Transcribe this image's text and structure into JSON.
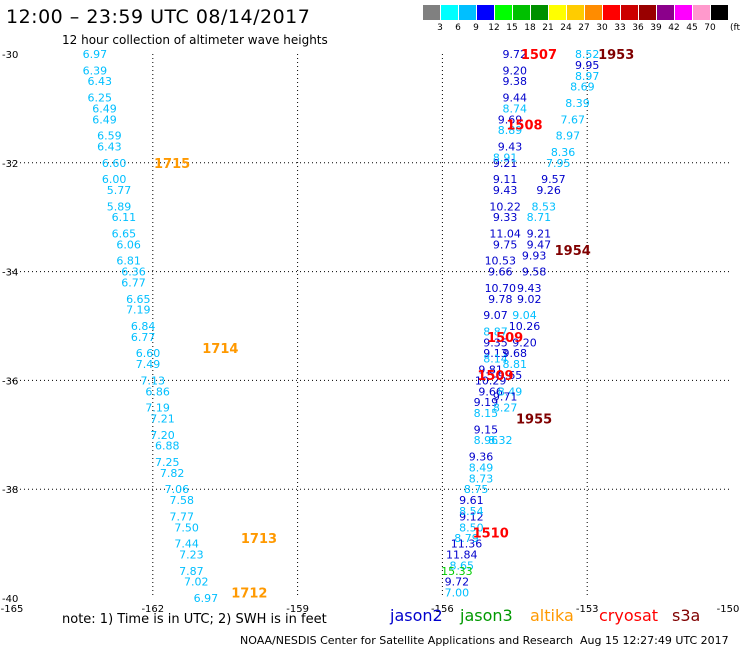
{
  "header": {
    "title": "12:00 – 23:59 UTC 08/14/2017",
    "subtitle": "12 hour collection of altimeter wave heights"
  },
  "color_scale": {
    "labels": [
      "3",
      "6",
      "9",
      "12",
      "15",
      "18",
      "21",
      "24",
      "27",
      "30",
      "33",
      "36",
      "39",
      "42",
      "45",
      "70"
    ],
    "unit": "(ft)",
    "colors": [
      "#808080",
      "#00ffff",
      "#00bfff",
      "#0000ff",
      "#00ff00",
      "#00c000",
      "#009000",
      "#ffff00",
      "#ffcc00",
      "#ff8c00",
      "#ff0000",
      "#cc0000",
      "#990000",
      "#8b008b",
      "#ff00ff",
      "#ff99cc",
      "#000000"
    ]
  },
  "footer": {
    "note": "note: 1) Time is in UTC; 2) SWH is in feet",
    "legend": [
      {
        "name": "jason2",
        "color": "#0000cc"
      },
      {
        "name": "jason3",
        "color": "#009900"
      },
      {
        "name": "altika",
        "color": "#ff9900"
      },
      {
        "name": "cryosat",
        "color": "#ff0000"
      },
      {
        "name": "s3a",
        "color": "#800000"
      }
    ],
    "credit": "NOAA/NESDIS Center for Satellite Applications and Research",
    "timestamp": "Aug 15 12:27:49 UTC 2017"
  },
  "chart_data": {
    "type": "scatter",
    "xlim": [
      -165,
      -150
    ],
    "ylim": [
      -40,
      -30
    ],
    "x_ticks": [
      "-165",
      "-162",
      "-159",
      "-156",
      "-153",
      "-150"
    ],
    "y_ticks": [
      "-30",
      "-32",
      "-34",
      "-36",
      "-38",
      "-40"
    ],
    "grid": true,
    "tracks": [
      {
        "satellite": "altika",
        "color": "#00bfff",
        "points": [
          {
            "x": -163.2,
            "y": -30.0,
            "v": "6.97"
          },
          {
            "x": -163.2,
            "y": -30.3,
            "v": "6.39"
          },
          {
            "x": -163.1,
            "y": -30.5,
            "v": "6.43"
          },
          {
            "x": -163.1,
            "y": -30.8,
            "v": "6.25"
          },
          {
            "x": -163.0,
            "y": -31.0,
            "v": "6.49"
          },
          {
            "x": -163.0,
            "y": -31.2,
            "v": "6.49"
          },
          {
            "x": -162.9,
            "y": -31.5,
            "v": "6.59"
          },
          {
            "x": -162.9,
            "y": -31.7,
            "v": "6.43"
          },
          {
            "x": -162.8,
            "y": -32.0,
            "v": "6.60"
          },
          {
            "x": -162.8,
            "y": -32.3,
            "v": "6.00"
          },
          {
            "x": -162.7,
            "y": -32.5,
            "v": "5.77"
          },
          {
            "x": -162.7,
            "y": -32.8,
            "v": "5.89"
          },
          {
            "x": -162.6,
            "y": -33.0,
            "v": "6.11"
          },
          {
            "x": -162.6,
            "y": -33.3,
            "v": "6.65"
          },
          {
            "x": -162.5,
            "y": -33.5,
            "v": "6.06"
          },
          {
            "x": -162.5,
            "y": -33.8,
            "v": "6.81"
          },
          {
            "x": -162.4,
            "y": -34.0,
            "v": "6.36"
          },
          {
            "x": -162.4,
            "y": -34.2,
            "v": "6.77"
          },
          {
            "x": -162.3,
            "y": -34.5,
            "v": "6.65"
          },
          {
            "x": -162.3,
            "y": -34.7,
            "v": "7.19"
          },
          {
            "x": -162.2,
            "y": -35.0,
            "v": "6.84"
          },
          {
            "x": -162.2,
            "y": -35.2,
            "v": "6.77"
          },
          {
            "x": -162.1,
            "y": -35.5,
            "v": "6.60"
          },
          {
            "x": -162.1,
            "y": -35.7,
            "v": "7.49"
          },
          {
            "x": -162.0,
            "y": -36.0,
            "v": "7.13"
          },
          {
            "x": -161.9,
            "y": -36.2,
            "v": "6.86"
          },
          {
            "x": -161.9,
            "y": -36.5,
            "v": "7.19"
          },
          {
            "x": -161.8,
            "y": -36.7,
            "v": "7.21"
          },
          {
            "x": -161.8,
            "y": -37.0,
            "v": "7.20"
          },
          {
            "x": -161.7,
            "y": -37.2,
            "v": "6.88"
          },
          {
            "x": -161.7,
            "y": -37.5,
            "v": "7.25"
          },
          {
            "x": -161.6,
            "y": -37.7,
            "v": "7.82"
          },
          {
            "x": -161.5,
            "y": -38.0,
            "v": "7.06"
          },
          {
            "x": -161.4,
            "y": -38.2,
            "v": "7.58"
          },
          {
            "x": -161.4,
            "y": -38.5,
            "v": "7.77"
          },
          {
            "x": -161.3,
            "y": -38.7,
            "v": "7.50"
          },
          {
            "x": -161.3,
            "y": -39.0,
            "v": "7.44"
          },
          {
            "x": -161.2,
            "y": -39.2,
            "v": "7.23"
          },
          {
            "x": -161.2,
            "y": -39.5,
            "v": "7.87"
          },
          {
            "x": -161.1,
            "y": -39.7,
            "v": "7.02"
          },
          {
            "x": -160.9,
            "y": -40.0,
            "v": "6.97"
          }
        ]
      },
      {
        "satellite": "jason2",
        "color": "#0000cc",
        "points": [
          {
            "x": -154.5,
            "y": -30.0,
            "v": "9.72"
          },
          {
            "x": -154.5,
            "y": -30.3,
            "v": "9.20"
          },
          {
            "x": -154.5,
            "y": -30.5,
            "v": "9.38"
          },
          {
            "x": -154.5,
            "y": -30.8,
            "v": "9.44"
          },
          {
            "x": -154.6,
            "y": -31.2,
            "v": "9.69"
          },
          {
            "x": -154.6,
            "y": -31.7,
            "v": "9.43"
          },
          {
            "x": -154.7,
            "y": -32.0,
            "v": "9.21"
          },
          {
            "x": -154.7,
            "y": -32.3,
            "v": "9.11"
          },
          {
            "x": -154.7,
            "y": -32.5,
            "v": "9.43"
          },
          {
            "x": -154.7,
            "y": -32.8,
            "v": "10.22"
          },
          {
            "x": -154.7,
            "y": -33.0,
            "v": "9.33"
          },
          {
            "x": -154.7,
            "y": -33.3,
            "v": "11.04"
          },
          {
            "x": -154.7,
            "y": -33.5,
            "v": "9.75"
          },
          {
            "x": -154.8,
            "y": -33.8,
            "v": "10.53"
          },
          {
            "x": -154.8,
            "y": -34.0,
            "v": "9.66"
          },
          {
            "x": -154.8,
            "y": -34.3,
            "v": "10.70"
          },
          {
            "x": -154.8,
            "y": -34.5,
            "v": "9.78"
          },
          {
            "x": -154.9,
            "y": -34.8,
            "v": "9.07"
          },
          {
            "x": -154.9,
            "y": -35.3,
            "v": "9.35"
          },
          {
            "x": -154.9,
            "y": -35.5,
            "v": "9.13"
          },
          {
            "x": -155.0,
            "y": -35.8,
            "v": "9.81"
          },
          {
            "x": -155.0,
            "y": -36.0,
            "v": "10.29"
          },
          {
            "x": -155.0,
            "y": -36.2,
            "v": "9.66"
          },
          {
            "x": -155.1,
            "y": -36.4,
            "v": "9.19"
          },
          {
            "x": -155.1,
            "y": -36.9,
            "v": "9.15"
          },
          {
            "x": -155.2,
            "y": -37.4,
            "v": "9.36"
          },
          {
            "x": -155.4,
            "y": -38.2,
            "v": "9.61"
          },
          {
            "x": -155.4,
            "y": -38.5,
            "v": "9.12"
          },
          {
            "x": -155.5,
            "y": -39.0,
            "v": "11.36"
          },
          {
            "x": -155.6,
            "y": -39.2,
            "v": "11.84"
          },
          {
            "x": -155.7,
            "y": -39.7,
            "v": "9.72"
          }
        ]
      },
      {
        "satellite": "jason3",
        "color": "#00bfff",
        "points": [
          {
            "x": -154.5,
            "y": -31.0,
            "v": "8.74"
          },
          {
            "x": -154.6,
            "y": -31.4,
            "v": "8.89"
          },
          {
            "x": -154.7,
            "y": -31.9,
            "v": "8.91"
          },
          {
            "x": -154.9,
            "y": -35.1,
            "v": "8.87"
          },
          {
            "x": -154.9,
            "y": -35.6,
            "v": "8.14"
          },
          {
            "x": -155.1,
            "y": -36.6,
            "v": "8.15"
          },
          {
            "x": -155.1,
            "y": -37.1,
            "v": "8.96"
          },
          {
            "x": -155.2,
            "y": -37.6,
            "v": "8.49"
          },
          {
            "x": -155.2,
            "y": -37.8,
            "v": "8.73"
          },
          {
            "x": -155.3,
            "y": -38.0,
            "v": "8.75"
          },
          {
            "x": -155.4,
            "y": -38.4,
            "v": "8.54"
          },
          {
            "x": -155.4,
            "y": -38.7,
            "v": "8.50"
          },
          {
            "x": -155.5,
            "y": -38.9,
            "v": "8.79"
          },
          {
            "x": -155.6,
            "y": -39.4,
            "v": "8.65"
          },
          {
            "x": -155.7,
            "y": -39.9,
            "v": "7.00"
          }
        ]
      },
      {
        "satellite": "jason3",
        "color": "#00cc00",
        "points": [
          {
            "x": -155.7,
            "y": -39.5,
            "v": "15.33"
          }
        ]
      },
      {
        "satellite": "cryosat",
        "color": "#00bfff",
        "points": [
          {
            "x": -153.0,
            "y": -30.0,
            "v": "8.52"
          },
          {
            "x": -153.0,
            "y": -30.4,
            "v": "8.97"
          },
          {
            "x": -153.1,
            "y": -30.6,
            "v": "8.69"
          },
          {
            "x": -153.2,
            "y": -30.9,
            "v": "8.39"
          },
          {
            "x": -153.3,
            "y": -31.2,
            "v": "7.67"
          },
          {
            "x": -153.4,
            "y": -31.5,
            "v": "8.97"
          },
          {
            "x": -153.5,
            "y": -31.8,
            "v": "8.36"
          },
          {
            "x": -153.6,
            "y": -32.0,
            "v": "7.95"
          },
          {
            "x": -153.9,
            "y": -32.8,
            "v": "8.53"
          },
          {
            "x": -154.0,
            "y": -33.0,
            "v": "8.71"
          },
          {
            "x": -154.3,
            "y": -34.8,
            "v": "9.04"
          },
          {
            "x": -154.5,
            "y": -35.7,
            "v": "8.81"
          },
          {
            "x": -154.6,
            "y": -36.2,
            "v": "8.49"
          },
          {
            "x": -154.7,
            "y": -36.5,
            "v": "8.27"
          },
          {
            "x": -154.8,
            "y": -37.1,
            "v": "8.32"
          }
        ]
      },
      {
        "satellite": "cryosat",
        "color": "#0000cc",
        "points": [
          {
            "x": -153.0,
            "y": -30.2,
            "v": "9.95"
          },
          {
            "x": -153.7,
            "y": -32.3,
            "v": "9.57"
          },
          {
            "x": -153.8,
            "y": -32.5,
            "v": "9.26"
          },
          {
            "x": -154.0,
            "y": -33.3,
            "v": "9.21"
          },
          {
            "x": -154.0,
            "y": -33.5,
            "v": "9.47"
          },
          {
            "x": -154.1,
            "y": -33.7,
            "v": "9.93"
          },
          {
            "x": -154.1,
            "y": -34.0,
            "v": "9.58"
          },
          {
            "x": -154.2,
            "y": -34.3,
            "v": "9.43"
          },
          {
            "x": -154.2,
            "y": -34.5,
            "v": "9.02"
          },
          {
            "x": -154.3,
            "y": -35.0,
            "v": "10.26"
          },
          {
            "x": -154.3,
            "y": -35.3,
            "v": "9.20"
          },
          {
            "x": -154.5,
            "y": -35.5,
            "v": "9.68"
          },
          {
            "x": -154.6,
            "y": -35.9,
            "v": "9.65"
          },
          {
            "x": -154.7,
            "y": -36.3,
            "v": "9.71"
          }
        ]
      }
    ],
    "time_labels": [
      {
        "satellite": "altika",
        "color": "#ff9900",
        "x": -161.6,
        "y": -32.0,
        "label": "1715"
      },
      {
        "satellite": "altika",
        "color": "#ff9900",
        "x": -160.6,
        "y": -35.4,
        "label": "1714"
      },
      {
        "satellite": "altika",
        "color": "#ff9900",
        "x": -159.8,
        "y": -38.9,
        "label": "1713"
      },
      {
        "satellite": "altika",
        "color": "#ff9900",
        "x": -160.0,
        "y": -39.9,
        "label": "1712"
      },
      {
        "satellite": "cryosat",
        "color": "#ff0000",
        "x": -154.0,
        "y": -30.0,
        "label": "1507"
      },
      {
        "satellite": "cryosat",
        "color": "#ff0000",
        "x": -154.3,
        "y": -31.3,
        "label": "1508"
      },
      {
        "satellite": "cryosat",
        "color": "#ff0000",
        "x": -154.7,
        "y": -35.2,
        "label": "1509"
      },
      {
        "satellite": "cryosat",
        "color": "#ff0000",
        "x": -154.9,
        "y": -35.9,
        "label": "1509"
      },
      {
        "satellite": "cryosat",
        "color": "#ff0000",
        "x": -155.0,
        "y": -38.8,
        "label": "1510"
      },
      {
        "satellite": "s3a",
        "color": "#800000",
        "x": -152.4,
        "y": -30.0,
        "label": "1953"
      },
      {
        "satellite": "s3a",
        "color": "#800000",
        "x": -153.3,
        "y": -33.6,
        "label": "1954"
      },
      {
        "satellite": "s3a",
        "color": "#800000",
        "x": -154.1,
        "y": -36.7,
        "label": "1955"
      }
    ]
  }
}
